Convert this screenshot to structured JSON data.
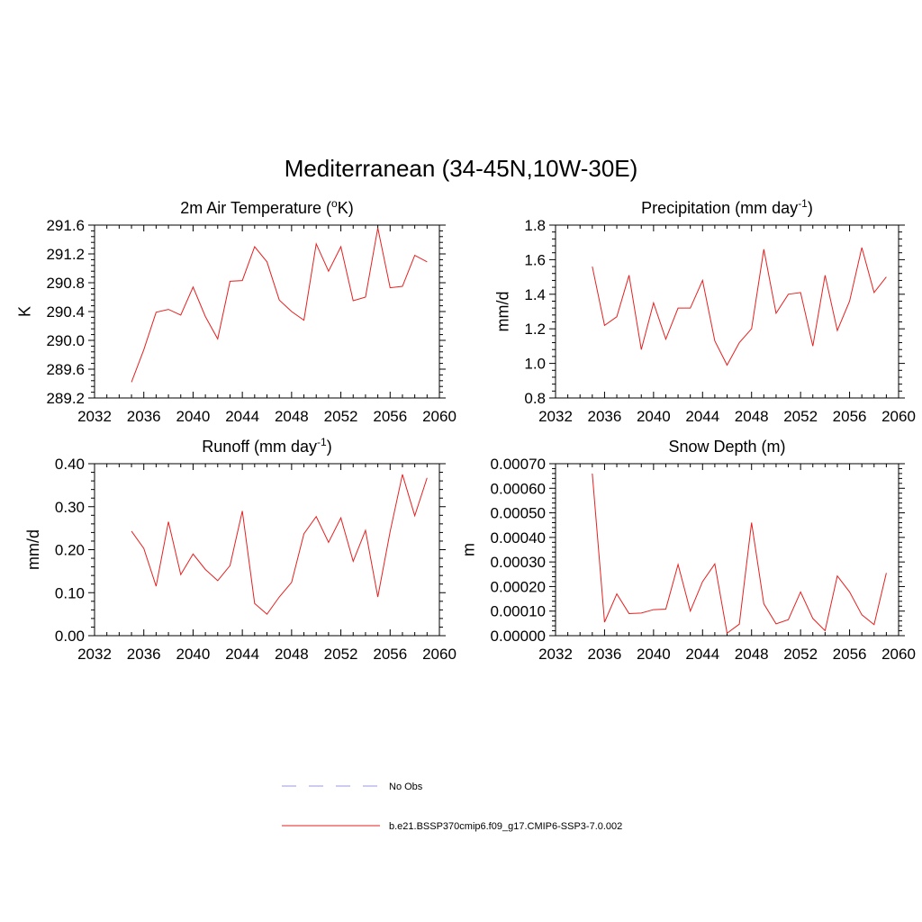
{
  "figure": {
    "title": "Mediterranean (34-45N,10W-30E)"
  },
  "legend": {
    "items": [
      {
        "label": "No Obs",
        "color": "#9a9ae6",
        "dash": true
      },
      {
        "label": "b.e21.BSSP370cmip6.f09_g17.CMIP6-SSP3-7.0.002",
        "color": "#e62020",
        "dash": false
      }
    ]
  },
  "chart_data": [
    {
      "id": "temp",
      "type": "line",
      "title": "2m Air Temperature (",
      "title_sup": "o",
      "title_after": "K)",
      "ylabel": "K",
      "xlim": [
        2032,
        2060
      ],
      "ylim": [
        289.2,
        291.6
      ],
      "xticks": [
        "2032",
        "2036",
        "2040",
        "2044",
        "2048",
        "2052",
        "2056",
        "2060"
      ],
      "yticks": [
        "289.2",
        "289.6",
        "290.0",
        "290.4",
        "290.8",
        "291.2",
        "291.6"
      ],
      "x": [
        2035,
        2036,
        2037,
        2038,
        2039,
        2040,
        2041,
        2042,
        2043,
        2044,
        2045,
        2046,
        2047,
        2048,
        2049,
        2050,
        2051,
        2052,
        2053,
        2054,
        2055,
        2056,
        2057,
        2058,
        2059
      ],
      "series": [
        {
          "name": "b.e21.BSSP370cmip6.f09_g17.CMIP6-SSP3-7.0.002",
          "color": "#e62020",
          "values": [
            289.42,
            289.87,
            290.39,
            290.43,
            290.35,
            290.74,
            290.33,
            290.02,
            290.82,
            290.83,
            291.3,
            291.09,
            290.56,
            290.4,
            290.28,
            291.34,
            290.96,
            291.3,
            290.55,
            290.6,
            291.56,
            290.73,
            290.75,
            291.18,
            291.09
          ]
        }
      ]
    },
    {
      "id": "precip",
      "type": "line",
      "title": "Precipitation (mm day",
      "title_sup": "-1",
      "title_after": ")",
      "ylabel": "mm/d",
      "xlim": [
        2032,
        2060
      ],
      "ylim": [
        0.8,
        1.8
      ],
      "xticks": [
        "2032",
        "2036",
        "2040",
        "2044",
        "2048",
        "2052",
        "2056",
        "2060"
      ],
      "yticks": [
        "0.8",
        "1.0",
        "1.2",
        "1.4",
        "1.6",
        "1.8"
      ],
      "x": [
        2035,
        2036,
        2037,
        2038,
        2039,
        2040,
        2041,
        2042,
        2043,
        2044,
        2045,
        2046,
        2047,
        2048,
        2049,
        2050,
        2051,
        2052,
        2053,
        2054,
        2055,
        2056,
        2057,
        2058,
        2059
      ],
      "series": [
        {
          "name": "b.e21.BSSP370cmip6.f09_g17.CMIP6-SSP3-7.0.002",
          "color": "#e62020",
          "values": [
            1.56,
            1.22,
            1.27,
            1.51,
            1.08,
            1.35,
            1.14,
            1.32,
            1.32,
            1.48,
            1.13,
            0.99,
            1.12,
            1.2,
            1.66,
            1.29,
            1.4,
            1.41,
            1.1,
            1.51,
            1.19,
            1.36,
            1.67,
            1.41,
            1.5
          ]
        }
      ]
    },
    {
      "id": "runoff",
      "type": "line",
      "title": "Runoff (mm day",
      "title_sup": "-1",
      "title_after": ")",
      "ylabel": "mm/d",
      "xlim": [
        2032,
        2060
      ],
      "ylim": [
        0.0,
        0.4
      ],
      "xticks": [
        "2032",
        "2036",
        "2040",
        "2044",
        "2048",
        "2052",
        "2056",
        "2060"
      ],
      "yticks": [
        "0.00",
        "0.10",
        "0.20",
        "0.30",
        "0.40"
      ],
      "x": [
        2035,
        2036,
        2037,
        2038,
        2039,
        2040,
        2041,
        2042,
        2043,
        2044,
        2045,
        2046,
        2047,
        2048,
        2049,
        2050,
        2051,
        2052,
        2053,
        2054,
        2055,
        2056,
        2057,
        2058,
        2059
      ],
      "series": [
        {
          "name": "b.e21.BSSP370cmip6.f09_g17.CMIP6-SSP3-7.0.002",
          "color": "#e62020",
          "values": [
            0.243,
            0.203,
            0.115,
            0.265,
            0.142,
            0.19,
            0.154,
            0.128,
            0.163,
            0.29,
            0.075,
            0.05,
            0.09,
            0.124,
            0.237,
            0.277,
            0.217,
            0.274,
            0.173,
            0.245,
            0.09,
            0.242,
            0.375,
            0.279,
            0.367
          ]
        }
      ]
    },
    {
      "id": "snow",
      "type": "line",
      "title": "Snow Depth (m)",
      "title_sup": "",
      "title_after": "",
      "ylabel": "m",
      "xlim": [
        2032,
        2060
      ],
      "ylim": [
        0.0,
        0.0007
      ],
      "xticks": [
        "2032",
        "2036",
        "2040",
        "2044",
        "2048",
        "2052",
        "2056",
        "2060"
      ],
      "yticks": [
        "0.00000",
        "0.00010",
        "0.00020",
        "0.00030",
        "0.00040",
        "0.00050",
        "0.00060",
        "0.00070"
      ],
      "x": [
        2035,
        2036,
        2037,
        2038,
        2039,
        2040,
        2041,
        2042,
        2043,
        2044,
        2045,
        2046,
        2047,
        2048,
        2049,
        2050,
        2051,
        2052,
        2053,
        2054,
        2055,
        2056,
        2057,
        2058,
        2059
      ],
      "series": [
        {
          "name": "b.e21.BSSP370cmip6.f09_g17.CMIP6-SSP3-7.0.002",
          "color": "#e62020",
          "values": [
            0.00066,
            5.5e-05,
            0.00017,
            9e-05,
            9.2e-05,
            0.000106,
            0.000108,
            0.00029,
            0.0001,
            0.00022,
            0.000292,
            1e-05,
            4.7e-05,
            0.00046,
            0.00013,
            4.8e-05,
            6.5e-05,
            0.000178,
            7e-05,
            2e-05,
            0.000243,
            0.000178,
            8.5e-05,
            4.5e-05,
            0.000255
          ]
        }
      ]
    }
  ]
}
